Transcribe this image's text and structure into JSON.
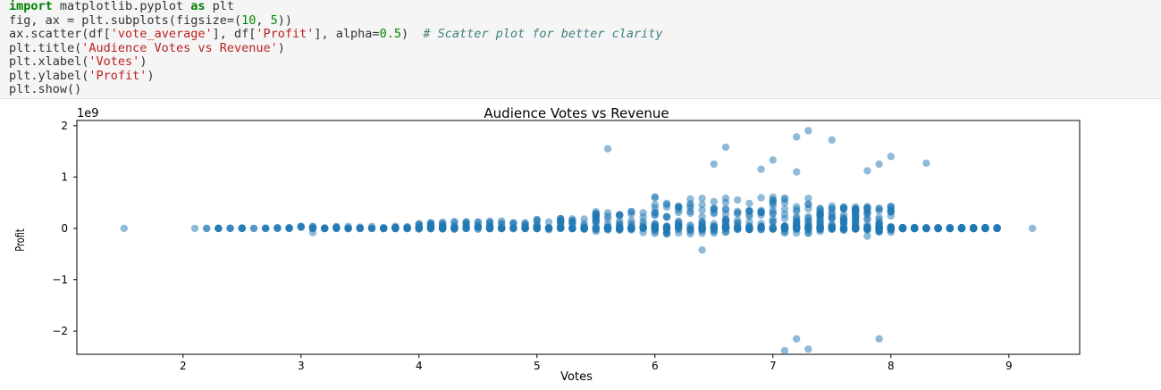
{
  "code_cell": {
    "lines": [
      [
        [
          "kw",
          "import"
        ],
        [
          "p",
          " matplotlib.pyplot "
        ],
        [
          "kw",
          "as"
        ],
        [
          "p",
          " plt"
        ]
      ],
      [
        [
          "p",
          "fig, ax = plt.subplots(figsize=("
        ],
        [
          "num",
          "10"
        ],
        [
          "p",
          ", "
        ],
        [
          "num",
          "5"
        ],
        [
          "p",
          "))"
        ]
      ],
      [
        [
          "p",
          "ax.scatter(df["
        ],
        [
          "str",
          "'vote_average'"
        ],
        [
          "p",
          "], df["
        ],
        [
          "str",
          "'Profit'"
        ],
        [
          "p",
          "], alpha="
        ],
        [
          "num",
          "0.5"
        ],
        [
          "p",
          ")  "
        ],
        [
          "cm",
          "# Scatter plot for better clarity"
        ]
      ],
      [
        [
          "p",
          "plt.title("
        ],
        [
          "str",
          "'Audience Votes vs Revenue'"
        ],
        [
          "p",
          ")"
        ]
      ],
      [
        [
          "p",
          "plt.xlabel("
        ],
        [
          "str",
          "'Votes'"
        ],
        [
          "p",
          ")"
        ]
      ],
      [
        [
          "p",
          "plt.ylabel("
        ],
        [
          "str",
          "'Profit'"
        ],
        [
          "p",
          ")"
        ]
      ],
      [
        [
          "p",
          "plt.show()"
        ]
      ]
    ]
  },
  "chart_data": {
    "type": "scatter",
    "title": "Audience Votes vs Revenue",
    "xlabel": "Votes",
    "ylabel": "Profit",
    "y_offset_label": "1e9",
    "xlim": [
      1.1,
      9.6
    ],
    "ylim": [
      -2.45,
      2.1
    ],
    "xticks": [
      2,
      3,
      4,
      5,
      6,
      7,
      8,
      9
    ],
    "yticks": [
      -2,
      -1,
      0,
      1,
      2
    ],
    "ytick_labels": [
      "−2",
      "−1",
      "0",
      "1",
      "2"
    ],
    "grid": false,
    "legend": "none",
    "marker_color": "#1f77b4",
    "alpha": 0.5,
    "notable_points": [
      [
        1.5,
        0
      ],
      [
        9.2,
        0
      ],
      [
        5.6,
        1.55
      ],
      [
        6.6,
        1.58
      ],
      [
        7.2,
        1.78
      ],
      [
        7.3,
        1.9
      ],
      [
        7.5,
        1.72
      ],
      [
        8.0,
        1.4
      ],
      [
        7.9,
        1.25
      ],
      [
        8.3,
        1.27
      ],
      [
        7.0,
        1.33
      ],
      [
        6.9,
        1.15
      ],
      [
        6.5,
        1.25
      ],
      [
        7.2,
        1.1
      ],
      [
        7.8,
        1.12
      ],
      [
        6.4,
        -0.42
      ],
      [
        5.9,
        -0.08
      ],
      [
        7.8,
        -0.15
      ],
      [
        3.1,
        -0.08
      ],
      [
        7.2,
        -2.15
      ],
      [
        7.1,
        -2.38
      ],
      [
        7.3,
        -2.35
      ],
      [
        7.9,
        -2.15
      ]
    ],
    "dense_band": {
      "x_range": [
        2.0,
        8.9
      ],
      "center": 0.0,
      "note": "thousands of points clustered near 0, widening between 5.5 and 8.1"
    }
  }
}
